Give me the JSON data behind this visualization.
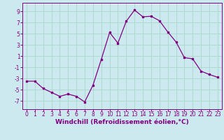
{
  "x": [
    0,
    1,
    2,
    3,
    4,
    5,
    6,
    7,
    8,
    9,
    10,
    11,
    12,
    13,
    14,
    15,
    16,
    17,
    18,
    19,
    20,
    21,
    22,
    23
  ],
  "y": [
    -3.5,
    -3.5,
    -4.8,
    -5.5,
    -6.2,
    -5.8,
    -6.2,
    -7.2,
    -4.2,
    0.4,
    5.2,
    3.3,
    7.2,
    9.2,
    8.0,
    8.1,
    7.3,
    5.3,
    3.5,
    0.7,
    0.5,
    -1.7,
    -2.3,
    -2.8
  ],
  "line_color": "#800080",
  "marker": "s",
  "markersize": 2,
  "linewidth": 0.9,
  "background_color": "#cce9f0",
  "grid_color": "#aad5cc",
  "xlabel": "Windchill (Refroidissement éolien,°C)",
  "xlabel_fontsize": 6.5,
  "ylabel_ticks": [
    -7,
    -5,
    -3,
    -1,
    1,
    3,
    5,
    7,
    9
  ],
  "xtick_labels": [
    "0",
    "1",
    "2",
    "3",
    "4",
    "5",
    "6",
    "7",
    "8",
    "9",
    "10",
    "11",
    "12",
    "13",
    "14",
    "15",
    "16",
    "17",
    "18",
    "19",
    "20",
    "21",
    "22",
    "23"
  ],
  "ylim": [
    -8.5,
    10.5
  ],
  "xlim": [
    -0.5,
    23.5
  ],
  "tick_fontsize": 5.5
}
